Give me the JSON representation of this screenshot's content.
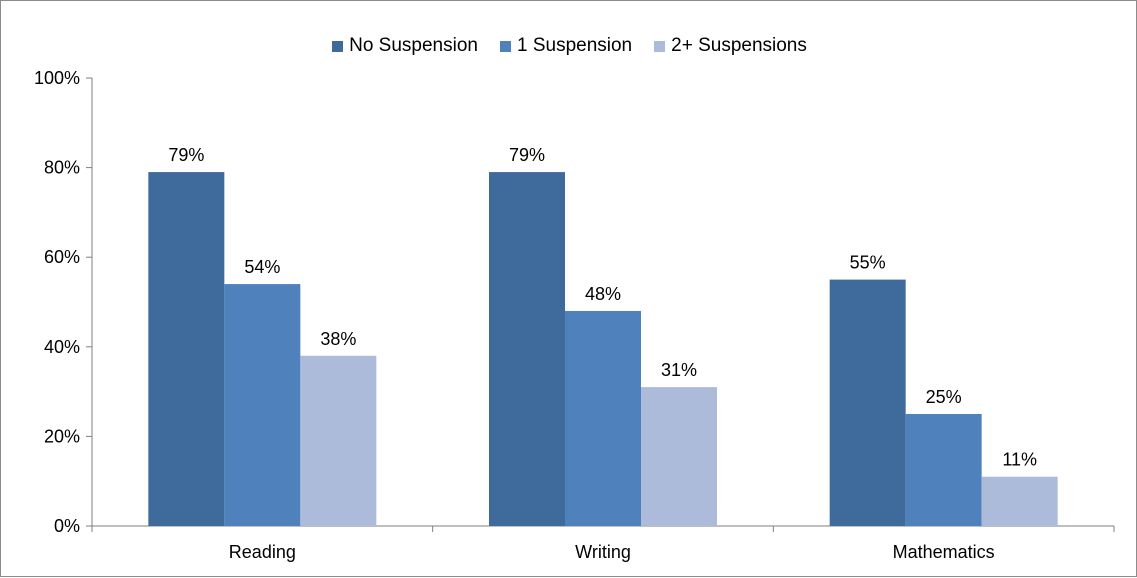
{
  "chart_data": {
    "type": "bar",
    "categories": [
      "Reading",
      "Writing",
      "Mathematics"
    ],
    "series": [
      {
        "name": "No Suspension",
        "values": [
          79,
          79,
          55
        ],
        "color": "#3f6a9c"
      },
      {
        "name": "1 Suspension",
        "values": [
          54,
          48,
          25
        ],
        "color": "#4f81bd"
      },
      {
        "name": "2+ Suspensions",
        "values": [
          38,
          31,
          11
        ],
        "color": "#abbbd9"
      }
    ],
    "data_labels": [
      [
        "79%",
        "79%",
        "55%"
      ],
      [
        "54%",
        "48%",
        "25%"
      ],
      [
        "38%",
        "31%",
        "11%"
      ]
    ],
    "ylim": [
      0,
      100
    ],
    "y_ticks": [
      0,
      20,
      40,
      60,
      80,
      100
    ],
    "y_tick_labels": [
      "0%",
      "20%",
      "40%",
      "60%",
      "80%",
      "100%"
    ],
    "title": "",
    "xlabel": "",
    "ylabel": "",
    "legend_position": "top-center",
    "grid": false
  }
}
